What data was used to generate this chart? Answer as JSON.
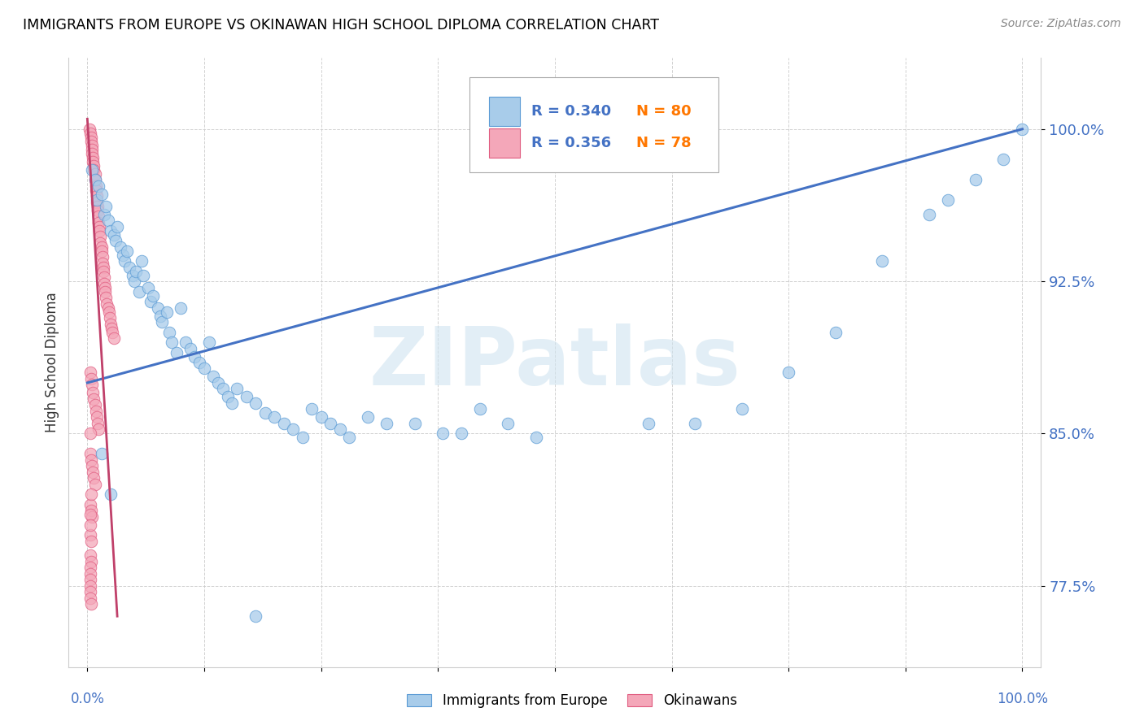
{
  "title": "IMMIGRANTS FROM EUROPE VS OKINAWAN HIGH SCHOOL DIPLOMA CORRELATION CHART",
  "source": "Source: ZipAtlas.com",
  "ylabel": "High School Diploma",
  "ytick_labels": [
    "77.5%",
    "85.0%",
    "92.5%",
    "100.0%"
  ],
  "ytick_values": [
    0.775,
    0.85,
    0.925,
    1.0
  ],
  "xlim": [
    -0.02,
    1.02
  ],
  "ylim": [
    0.735,
    1.035
  ],
  "blue_color": "#A8CCEA",
  "blue_edge_color": "#5B9BD5",
  "pink_color": "#F4A7B9",
  "pink_edge_color": "#E05C80",
  "line_blue_color": "#4472C4",
  "line_pink_color": "#C0406A",
  "watermark_color": "#D0E4F0",
  "grid_color": "#CCCCCC",
  "tick_label_color": "#4472C4",
  "ylabel_color": "#333333",
  "blue_scatter_x": [
    0.005,
    0.008,
    0.01,
    0.012,
    0.015,
    0.018,
    0.02,
    0.022,
    0.025,
    0.028,
    0.03,
    0.032,
    0.035,
    0.038,
    0.04,
    0.042,
    0.045,
    0.048,
    0.05,
    0.052,
    0.055,
    0.058,
    0.06,
    0.065,
    0.068,
    0.07,
    0.075,
    0.078,
    0.08,
    0.085,
    0.088,
    0.09,
    0.095,
    0.1,
    0.105,
    0.11,
    0.115,
    0.12,
    0.125,
    0.13,
    0.135,
    0.14,
    0.145,
    0.15,
    0.155,
    0.16,
    0.17,
    0.18,
    0.19,
    0.2,
    0.21,
    0.22,
    0.23,
    0.24,
    0.25,
    0.26,
    0.27,
    0.28,
    0.3,
    0.32,
    0.35,
    0.38,
    0.4,
    0.42,
    0.45,
    0.48,
    0.6,
    0.65,
    0.7,
    0.75,
    0.8,
    0.85,
    0.9,
    0.92,
    0.95,
    0.98,
    1.0,
    0.015,
    0.025,
    0.18
  ],
  "blue_scatter_y": [
    0.98,
    0.975,
    0.965,
    0.972,
    0.968,
    0.958,
    0.962,
    0.955,
    0.95,
    0.948,
    0.945,
    0.952,
    0.942,
    0.938,
    0.935,
    0.94,
    0.932,
    0.928,
    0.925,
    0.93,
    0.92,
    0.935,
    0.928,
    0.922,
    0.915,
    0.918,
    0.912,
    0.908,
    0.905,
    0.91,
    0.9,
    0.895,
    0.89,
    0.912,
    0.895,
    0.892,
    0.888,
    0.885,
    0.882,
    0.895,
    0.878,
    0.875,
    0.872,
    0.868,
    0.865,
    0.872,
    0.868,
    0.865,
    0.86,
    0.858,
    0.855,
    0.852,
    0.848,
    0.862,
    0.858,
    0.855,
    0.852,
    0.848,
    0.858,
    0.855,
    0.855,
    0.85,
    0.85,
    0.862,
    0.855,
    0.848,
    0.855,
    0.855,
    0.862,
    0.88,
    0.9,
    0.935,
    0.958,
    0.965,
    0.975,
    0.985,
    1.0,
    0.84,
    0.82,
    0.76
  ],
  "pink_scatter_x": [
    0.002,
    0.003,
    0.004,
    0.004,
    0.005,
    0.005,
    0.005,
    0.006,
    0.006,
    0.007,
    0.007,
    0.008,
    0.008,
    0.009,
    0.009,
    0.01,
    0.01,
    0.011,
    0.011,
    0.012,
    0.012,
    0.013,
    0.013,
    0.014,
    0.014,
    0.015,
    0.015,
    0.016,
    0.016,
    0.017,
    0.017,
    0.018,
    0.018,
    0.019,
    0.019,
    0.02,
    0.021,
    0.022,
    0.023,
    0.024,
    0.025,
    0.026,
    0.027,
    0.028,
    0.003,
    0.004,
    0.005,
    0.006,
    0.007,
    0.008,
    0.009,
    0.01,
    0.011,
    0.012,
    0.003,
    0.004,
    0.005,
    0.006,
    0.007,
    0.008,
    0.003,
    0.004,
    0.005,
    0.003,
    0.004,
    0.003,
    0.004,
    0.003,
    0.003,
    0.003,
    0.003,
    0.003,
    0.003,
    0.004,
    0.003,
    0.004,
    0.003,
    0.003
  ],
  "pink_scatter_y": [
    1.0,
    0.998,
    0.996,
    0.994,
    0.992,
    0.99,
    0.988,
    0.986,
    0.984,
    0.982,
    0.98,
    0.978,
    0.975,
    0.972,
    0.97,
    0.967,
    0.964,
    0.962,
    0.96,
    0.957,
    0.954,
    0.952,
    0.95,
    0.947,
    0.944,
    0.942,
    0.94,
    0.937,
    0.934,
    0.932,
    0.93,
    0.927,
    0.924,
    0.922,
    0.92,
    0.917,
    0.914,
    0.912,
    0.91,
    0.907,
    0.904,
    0.902,
    0.9,
    0.897,
    0.88,
    0.877,
    0.874,
    0.87,
    0.867,
    0.864,
    0.861,
    0.858,
    0.855,
    0.852,
    0.84,
    0.837,
    0.834,
    0.831,
    0.828,
    0.825,
    0.815,
    0.812,
    0.809,
    0.8,
    0.797,
    0.79,
    0.787,
    0.784,
    0.781,
    0.778,
    0.775,
    0.772,
    0.769,
    0.766,
    0.85,
    0.82,
    0.81,
    0.805
  ],
  "blue_line_start_y": 0.875,
  "blue_line_end_y": 1.0,
  "pink_line_x0": 0.0,
  "pink_line_x1": 0.032,
  "pink_line_y0": 1.005,
  "pink_line_y1": 0.76
}
